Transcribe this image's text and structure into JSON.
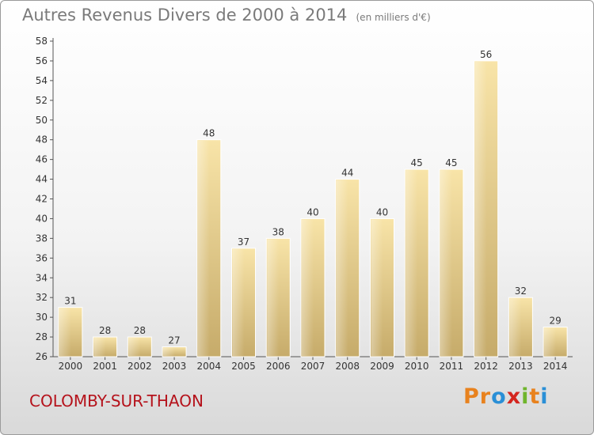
{
  "header": {
    "title": "Autres Revenus Divers de 2000 à 2014",
    "subtitle": "(en milliers d'€)"
  },
  "footer": {
    "city": "COLOMBY-SUR-THAON",
    "logo": [
      "P",
      "r",
      "o",
      "x",
      "i",
      "t",
      "i"
    ],
    "logo_colors": [
      "#e8821e",
      "#e8821e",
      "#2a8fd6",
      "#d4261f",
      "#6fb52c",
      "#e8821e",
      "#2a8fd6"
    ]
  },
  "colors": {
    "bar_light": "#f6dfa0",
    "bar_dark": "#c8ae6e",
    "axis": "#555555",
    "grid": "#c8c8c8"
  },
  "chart_data": {
    "type": "bar",
    "title": "Autres Revenus Divers de 2000 à 2014",
    "subtitle": "(en milliers d'€)",
    "xlabel": "",
    "ylabel": "",
    "categories": [
      "2000",
      "2001",
      "2002",
      "2003",
      "2004",
      "2005",
      "2006",
      "2007",
      "2008",
      "2009",
      "2010",
      "2011",
      "2012",
      "2013",
      "2014"
    ],
    "values": [
      31,
      28,
      28,
      27,
      48,
      37,
      38,
      40,
      44,
      40,
      45,
      45,
      56,
      32,
      29
    ],
    "ylim": [
      26,
      58
    ],
    "yticks": [
      26,
      28,
      30,
      32,
      34,
      36,
      38,
      40,
      42,
      44,
      46,
      48,
      50,
      52,
      54,
      56,
      58
    ],
    "grid": false,
    "legend": "none"
  }
}
